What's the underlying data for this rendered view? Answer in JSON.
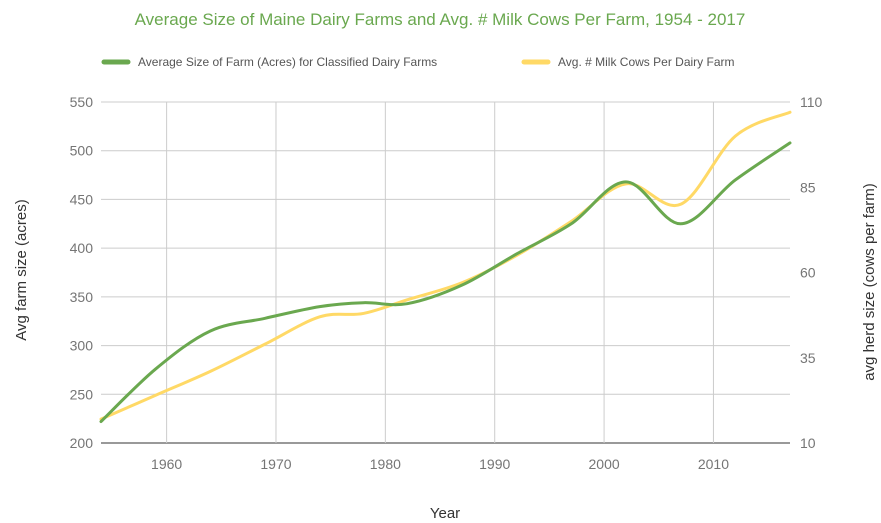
{
  "chart_data": {
    "type": "line",
    "title": "Average Size of Maine Dairy Farms and Avg. # Milk Cows Per Farm, 1954 - 2017",
    "xlabel": "Year",
    "ylabel": "Avg farm size (acres)",
    "y2label": "avg herd size (cows per farm)",
    "xlim": [
      1954,
      2017
    ],
    "ylim": [
      200,
      550
    ],
    "y2lim": [
      10,
      110
    ],
    "x_ticks": [
      1960,
      1970,
      1980,
      1990,
      2000,
      2010
    ],
    "y_ticks": [
      200,
      250,
      300,
      350,
      400,
      450,
      500,
      550
    ],
    "y2_ticks": [
      10,
      35,
      60,
      85,
      110
    ],
    "grid": true,
    "legend_position": "top",
    "series": [
      {
        "name": "Average Size of Farm (Acres) for Classified Dairy Farms",
        "axis": "left",
        "color": "#6aa84f",
        "x": [
          1954,
          1959,
          1964,
          1969,
          1974,
          1978,
          1982,
          1987,
          1992,
          1997,
          2002,
          2007,
          2012,
          2017
        ],
        "y": [
          222,
          276,
          315,
          328,
          340,
          344,
          343,
          362,
          394,
          425,
          468,
          425,
          470,
          508
        ]
      },
      {
        "name": "Avg. # Milk Cows Per Dairy Farm",
        "axis": "right",
        "color": "#ffd966",
        "x": [
          1954,
          1959,
          1964,
          1969,
          1974,
          1978,
          1982,
          1987,
          1992,
          1997,
          2002,
          2007,
          2012,
          2017
        ],
        "y": [
          17,
          24,
          31,
          39,
          47,
          48,
          52,
          57,
          65,
          75,
          86,
          80,
          100,
          107
        ]
      }
    ]
  }
}
